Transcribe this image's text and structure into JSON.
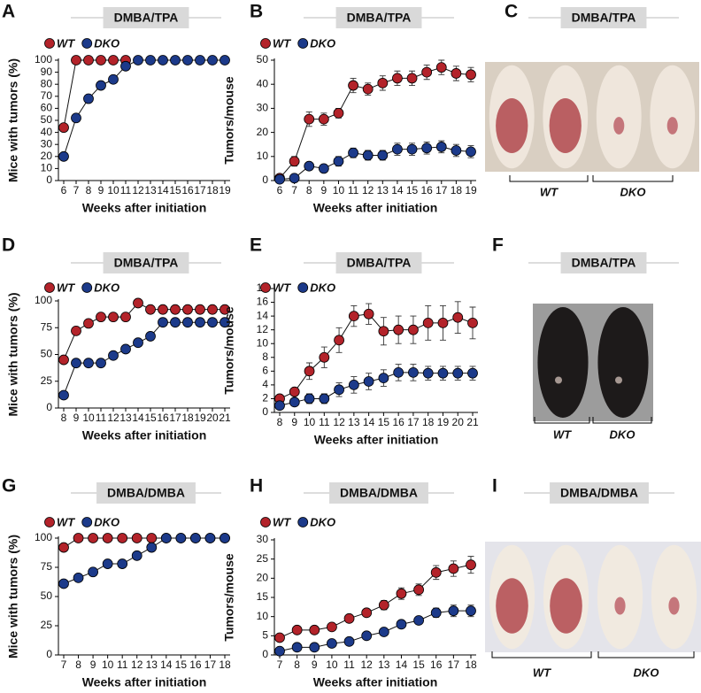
{
  "chart_data": [
    {
      "type": "line",
      "panel": "A",
      "title": "DMBA/TPA",
      "xlabel": "Weeks after initiation",
      "ylabel": "Mice with tumors (%)",
      "x": [
        6,
        7,
        8,
        9,
        10,
        11,
        12,
        13,
        14,
        15,
        16,
        17,
        18,
        19
      ],
      "xlim": [
        6,
        19
      ],
      "xticks": [
        6,
        7,
        8,
        9,
        10,
        11,
        12,
        13,
        14,
        15,
        16,
        17,
        18,
        19
      ],
      "ylim": [
        0,
        100
      ],
      "yticks": [
        0,
        10,
        20,
        30,
        40,
        50,
        60,
        70,
        80,
        90,
        100
      ],
      "series": [
        {
          "name": "WT",
          "color": "#b3232a",
          "values": [
            44,
            100,
            100,
            100,
            100,
            100,
            null,
            null,
            null,
            null,
            null,
            null,
            null,
            null
          ]
        },
        {
          "name": "DKO",
          "color": "#1c3a8a",
          "values": [
            20,
            52,
            68,
            79,
            84,
            95,
            100,
            100,
            100,
            100,
            100,
            100,
            100,
            100
          ]
        }
      ]
    },
    {
      "type": "line",
      "panel": "B",
      "title": "DMBA/TPA",
      "xlabel": "Weeks after initiation",
      "ylabel": "Tumors/mouse",
      "x": [
        6,
        7,
        8,
        9,
        10,
        11,
        12,
        13,
        14,
        15,
        16,
        17,
        18,
        19
      ],
      "xlim": [
        6,
        19
      ],
      "xticks": [
        6,
        7,
        8,
        9,
        10,
        11,
        12,
        13,
        14,
        15,
        16,
        17,
        18,
        19
      ],
      "ylim": [
        0,
        50
      ],
      "yticks": [
        0,
        10,
        20,
        30,
        40,
        50
      ],
      "series": [
        {
          "name": "WT",
          "color": "#b3232a",
          "values": [
            1,
            8,
            25.5,
            25.5,
            28,
            39.5,
            38,
            40.5,
            42.5,
            42.5,
            45,
            47,
            44.5,
            44
          ],
          "errors": [
            1,
            2,
            3,
            2.5,
            2,
            3,
            2.5,
            3,
            3,
            3,
            3,
            3,
            3,
            3
          ]
        },
        {
          "name": "DKO",
          "color": "#1c3a8a",
          "values": [
            0.5,
            1,
            6,
            5,
            8,
            11.5,
            10.5,
            10.5,
            13,
            13,
            13.5,
            14,
            12.5,
            12
          ],
          "errors": [
            0.5,
            0.5,
            1.5,
            1.5,
            2,
            2,
            2,
            2,
            2.5,
            2.5,
            2.5,
            2.5,
            2.5,
            2.5
          ]
        }
      ]
    },
    {
      "type": "line",
      "panel": "D",
      "title": "DMBA/TPA",
      "xlabel": "Weeks after initiation",
      "ylabel": "Mice with tumors (%)",
      "x": [
        8,
        9,
        10,
        11,
        12,
        13,
        14,
        15,
        16,
        17,
        18,
        19,
        20,
        21
      ],
      "xlim": [
        8,
        21
      ],
      "xticks": [
        8,
        9,
        10,
        11,
        12,
        13,
        14,
        15,
        16,
        17,
        18,
        19,
        20,
        21
      ],
      "ylim": [
        0,
        100
      ],
      "yticks": [
        0,
        25,
        50,
        75,
        100
      ],
      "series": [
        {
          "name": "WT",
          "color": "#b3232a",
          "values": [
            45,
            72,
            79,
            85,
            85,
            85,
            98,
            92,
            92,
            92,
            92,
            92,
            92,
            92
          ]
        },
        {
          "name": "DKO",
          "color": "#1c3a8a",
          "values": [
            12,
            42,
            42,
            42,
            49,
            55,
            61,
            67,
            80,
            80,
            80,
            80,
            80,
            80
          ]
        }
      ]
    },
    {
      "type": "line",
      "panel": "E",
      "title": "DMBA/TPA",
      "xlabel": "Weeks after initiation",
      "ylabel": "Tumors/mouse",
      "x": [
        8,
        9,
        10,
        11,
        12,
        13,
        14,
        15,
        16,
        17,
        18,
        19,
        20,
        21
      ],
      "xlim": [
        8,
        21
      ],
      "xticks": [
        8,
        9,
        10,
        11,
        12,
        13,
        14,
        15,
        16,
        17,
        18,
        19,
        20,
        21
      ],
      "ylim": [
        0,
        18
      ],
      "yticks": [
        0,
        2,
        4,
        6,
        8,
        10,
        12,
        14,
        16,
        18
      ],
      "series": [
        {
          "name": "WT",
          "color": "#b3232a",
          "values": [
            2,
            3,
            6,
            8,
            10.5,
            14,
            14.3,
            11.8,
            12,
            12,
            13,
            13,
            13.8,
            13
          ],
          "errors": [
            0.3,
            0.5,
            1.2,
            1.5,
            1.8,
            1.5,
            1.5,
            2,
            2,
            2,
            2.5,
            2.5,
            2.3,
            2.3
          ]
        },
        {
          "name": "DKO",
          "color": "#1c3a8a",
          "values": [
            1,
            1.5,
            2,
            2,
            3.3,
            4,
            4.5,
            5,
            5.8,
            5.8,
            5.7,
            5.7,
            5.7,
            5.7
          ],
          "errors": [
            0.3,
            0.5,
            0.7,
            0.7,
            1,
            1.2,
            1.2,
            1.2,
            1.2,
            1.2,
            1,
            1,
            1,
            1
          ]
        }
      ]
    },
    {
      "type": "line",
      "panel": "G",
      "title": "DMBA/DMBA",
      "xlabel": "Weeks after initiation",
      "ylabel": "Mice with tumors (%)",
      "x": [
        7,
        8,
        9,
        10,
        11,
        12,
        13,
        14,
        15,
        16,
        17,
        18
      ],
      "xlim": [
        7,
        18
      ],
      "xticks": [
        7,
        8,
        9,
        10,
        11,
        12,
        13,
        14,
        15,
        16,
        17,
        18
      ],
      "ylim": [
        0,
        100
      ],
      "yticks": [
        0,
        25,
        50,
        75,
        100
      ],
      "series": [
        {
          "name": "WT",
          "color": "#b3232a",
          "values": [
            92,
            100,
            100,
            100,
            100,
            100,
            100,
            100,
            100,
            100,
            100,
            100
          ]
        },
        {
          "name": "DKO",
          "color": "#1c3a8a",
          "values": [
            61,
            66,
            71,
            78,
            78,
            85,
            92,
            100,
            100,
            100,
            100,
            100
          ]
        }
      ]
    },
    {
      "type": "line",
      "panel": "H",
      "title": "DMBA/DMBA",
      "xlabel": "Weeks after initiation",
      "ylabel": "Tumors/mouse",
      "x": [
        7,
        8,
        9,
        10,
        11,
        12,
        13,
        14,
        15,
        16,
        17,
        18
      ],
      "xlim": [
        7,
        18
      ],
      "xticks": [
        7,
        8,
        9,
        10,
        11,
        12,
        13,
        14,
        15,
        16,
        17,
        18
      ],
      "ylim": [
        0,
        30
      ],
      "yticks": [
        0,
        5,
        10,
        15,
        20,
        25,
        30
      ],
      "series": [
        {
          "name": "WT",
          "color": "#b3232a",
          "values": [
            4.5,
            6.5,
            6.5,
            7.3,
            9.5,
            11,
            13,
            16,
            17,
            21.5,
            22.5,
            23.5
          ],
          "errors": [
            0.5,
            0.8,
            0.8,
            0.8,
            1,
            1,
            1.2,
            1.5,
            1.5,
            1.8,
            2,
            2.2
          ]
        },
        {
          "name": "DKO",
          "color": "#1c3a8a",
          "values": [
            1,
            2,
            2,
            3,
            3.5,
            5,
            6,
            8,
            9,
            11,
            11.5,
            11.5
          ],
          "errors": [
            0.3,
            0.4,
            0.4,
            0.5,
            0.5,
            0.6,
            0.7,
            1,
            1,
            1.2,
            1.5,
            1.5
          ]
        }
      ]
    }
  ],
  "photo_panels": [
    {
      "panel": "C",
      "title": "DMBA/TPA",
      "groups": [
        "WT",
        "DKO"
      ]
    },
    {
      "panel": "F",
      "title": "DMBA/TPA",
      "groups": [
        "WT",
        "DKO"
      ]
    },
    {
      "panel": "I",
      "title": "DMBA/DMBA",
      "groups": [
        "WT",
        "DKO"
      ]
    }
  ]
}
